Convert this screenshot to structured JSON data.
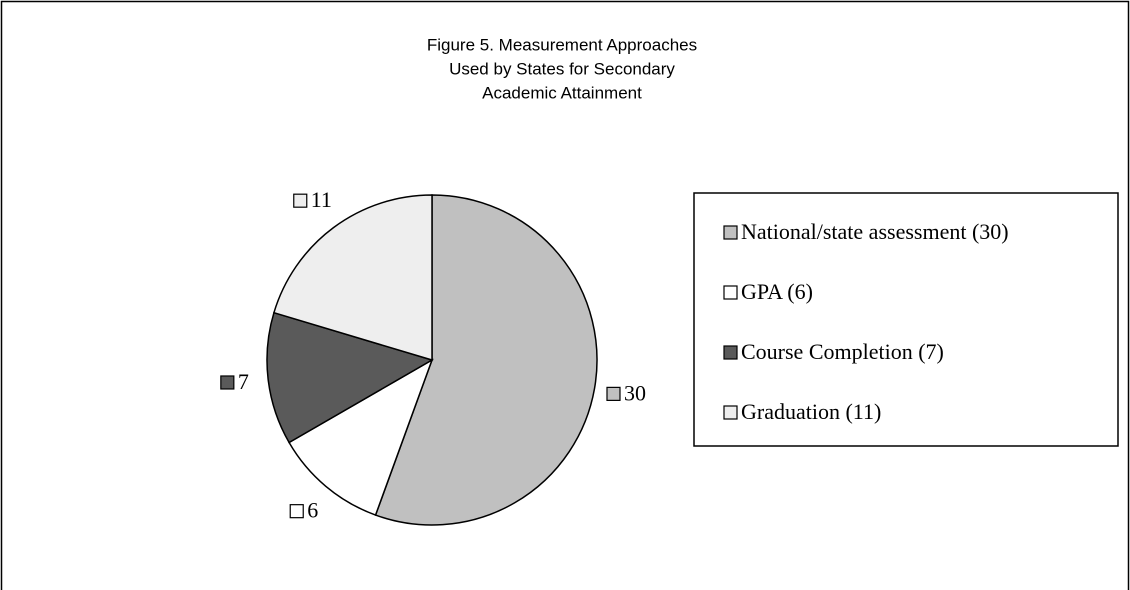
{
  "chart_data": {
    "type": "pie",
    "title": [
      "Figure 5.  Measurement Approaches",
      "Used by States for Secondary",
      "Academic Attainment"
    ],
    "categories": [
      "National/state assessment (30)",
      "GPA (6)",
      "Course Completion (7)",
      "Graduation (11)"
    ],
    "values": [
      30,
      6,
      7,
      11
    ],
    "colors": [
      "#c0c0c0",
      "#ffffff",
      "#5a5a5a",
      "#eeeeee"
    ],
    "legend": "right"
  }
}
